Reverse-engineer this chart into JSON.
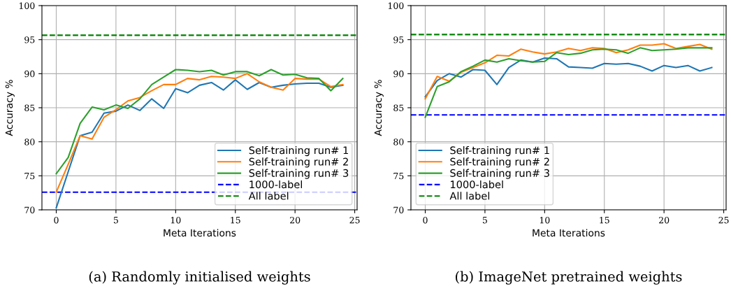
{
  "chart_data": [
    {
      "type": "line",
      "xlabel": "Meta Iterations",
      "ylabel": "Accuracy %",
      "annotations": [
        "(a) Randomly initialised weights"
      ],
      "x": [
        0,
        1,
        2,
        3,
        4,
        5,
        6,
        7,
        8,
        9,
        10,
        11,
        12,
        13,
        14,
        15,
        16,
        17,
        18,
        19,
        20,
        21,
        22,
        23,
        24
      ],
      "series": [
        {
          "name": "Self-training run# 1",
          "color": "#1f77b4",
          "values": [
            70.3,
            75.6,
            80.9,
            81.4,
            84.2,
            84.5,
            85.4,
            84.6,
            86.3,
            84.9,
            87.8,
            87.2,
            88.3,
            88.7,
            87.6,
            89.1,
            87.7,
            88.7,
            88.0,
            88.3,
            88.5,
            88.6,
            88.6,
            88.0,
            88.3
          ]
        },
        {
          "name": "Self-training run# 2",
          "color": "#ff7f0e",
          "values": [
            72.6,
            76.7,
            80.9,
            80.4,
            83.6,
            84.7,
            86.0,
            86.5,
            87.5,
            88.4,
            88.4,
            89.3,
            89.1,
            89.6,
            89.5,
            89.3,
            90.0,
            88.8,
            88.0,
            87.6,
            89.3,
            89.2,
            89.2,
            88.1,
            88.4
          ]
        },
        {
          "name": "Self-training run# 3",
          "color": "#2ca02c",
          "values": [
            75.3,
            77.7,
            82.7,
            85.1,
            84.7,
            85.4,
            84.9,
            86.3,
            88.4,
            89.5,
            90.6,
            90.5,
            90.3,
            90.5,
            89.8,
            90.3,
            90.3,
            89.7,
            90.6,
            89.8,
            89.9,
            89.4,
            89.3,
            87.5,
            89.3
          ]
        }
      ],
      "ref_lines": [
        {
          "axis": "y",
          "value": 72.6,
          "label": "1000-label",
          "color": "#0000ff",
          "line_style": "dashed"
        },
        {
          "axis": "y",
          "value": 95.65,
          "label": "All label",
          "color": "#008000",
          "line_style": "dashed"
        }
      ],
      "xlim": [
        -1.2,
        25.2
      ],
      "ylim": [
        70,
        100
      ],
      "xticks": [
        0,
        5,
        10,
        15,
        20,
        25
      ],
      "yticks": [
        70,
        75,
        80,
        85,
        90,
        95,
        100
      ],
      "grid": true,
      "legend": "bottom right",
      "line_style": "solid",
      "marker": "none"
    },
    {
      "type": "line",
      "xlabel": "Meta Iterations",
      "ylabel": "Accuracy %",
      "annotations": [
        "(b) ImageNet pretrained weights"
      ],
      "x": [
        0,
        1,
        2,
        3,
        4,
        5,
        6,
        7,
        8,
        9,
        10,
        11,
        12,
        13,
        14,
        15,
        16,
        17,
        18,
        19,
        20,
        21,
        22,
        23,
        24
      ],
      "series": [
        {
          "name": "Self-training run# 1",
          "color": "#1f77b4",
          "values": [
            86.6,
            89.0,
            90.0,
            89.5,
            90.6,
            90.5,
            88.4,
            90.9,
            92.0,
            91.7,
            92.3,
            92.2,
            91.0,
            90.9,
            90.8,
            91.5,
            91.4,
            91.5,
            91.1,
            90.4,
            91.2,
            90.9,
            91.2,
            90.4,
            90.9
          ]
        },
        {
          "name": "Self-training run# 2",
          "color": "#ff7f0e",
          "values": [
            86.3,
            89.6,
            88.9,
            90.2,
            90.9,
            91.6,
            92.7,
            92.6,
            93.6,
            93.2,
            92.9,
            93.2,
            93.7,
            93.4,
            93.8,
            93.7,
            93.1,
            93.5,
            94.2,
            94.2,
            94.4,
            93.7,
            94.0,
            94.3,
            93.6
          ]
        },
        {
          "name": "Self-training run# 3",
          "color": "#2ca02c",
          "values": [
            83.6,
            88.1,
            88.8,
            90.3,
            91.1,
            92.0,
            91.7,
            92.2,
            91.9,
            91.7,
            91.8,
            93.1,
            92.8,
            93.0,
            93.5,
            93.6,
            93.5,
            93.0,
            93.8,
            93.4,
            93.5,
            93.6,
            93.8,
            93.8,
            93.8
          ]
        }
      ],
      "ref_lines": [
        {
          "axis": "y",
          "value": 83.95,
          "label": "1000-label",
          "color": "#0000ff",
          "line_style": "dashed"
        },
        {
          "axis": "y",
          "value": 95.75,
          "label": "All label",
          "color": "#008000",
          "line_style": "dashed"
        }
      ],
      "xlim": [
        -1.2,
        25.2
      ],
      "ylim": [
        70,
        100
      ],
      "xticks": [
        0,
        5,
        10,
        15,
        20,
        25
      ],
      "yticks": [
        70,
        75,
        80,
        85,
        90,
        95,
        100
      ],
      "grid": true,
      "legend": "bottom left",
      "line_style": "solid",
      "marker": "none"
    }
  ]
}
